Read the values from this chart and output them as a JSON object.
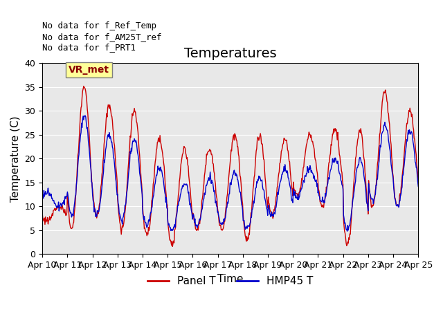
{
  "title": "Temperatures",
  "xlabel": "Time",
  "ylabel": "Temperature (C)",
  "ylim": [
    0,
    40
  ],
  "xtick_labels": [
    "Apr 10",
    "Apr 11",
    "Apr 12",
    "Apr 13",
    "Apr 14",
    "Apr 15",
    "Apr 16",
    "Apr 17",
    "Apr 18",
    "Apr 19",
    "Apr 20",
    "Apr 21",
    "Apr 22",
    "Apr 23",
    "Apr 24",
    "Apr 25"
  ],
  "ytick_values": [
    0,
    5,
    10,
    15,
    20,
    25,
    30,
    35,
    40
  ],
  "panel_color": "#cc0000",
  "hmp45_color": "#0000cc",
  "legend_items": [
    "Panel T",
    "HMP45 T"
  ],
  "annotations": [
    "No data for f_Ref_Temp",
    "No data for f_AM25T_ref",
    "No data for f_PRT1"
  ],
  "vr_met_label": "VR_met",
  "bg_color": "#e8e8e8",
  "title_fontsize": 14,
  "axis_fontsize": 11,
  "tick_fontsize": 9,
  "annotation_fontsize": 9,
  "panel_mins": [
    7,
    5,
    8,
    5,
    4,
    2,
    5,
    5,
    3,
    8,
    12,
    10,
    2,
    10,
    10,
    10
  ],
  "panel_maxs": [
    10,
    35,
    31,
    30,
    24,
    22,
    22,
    25,
    25,
    24,
    25,
    26,
    26,
    34,
    30,
    10
  ],
  "hmp45_mins": [
    13,
    8,
    8,
    7,
    6,
    5,
    6,
    6,
    5,
    8,
    12,
    11,
    5,
    11,
    10,
    12
  ],
  "hmp45_maxs": [
    10,
    29,
    25,
    24,
    18,
    15,
    16,
    17,
    16,
    18,
    18,
    20,
    20,
    27,
    26,
    13
  ]
}
